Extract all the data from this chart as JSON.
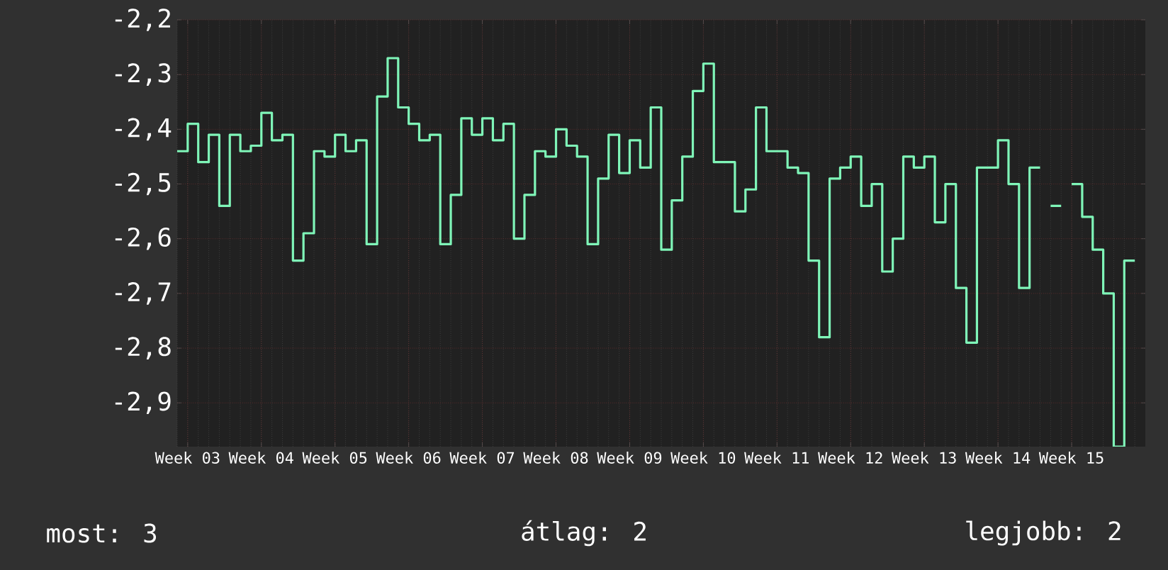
{
  "chart_data": {
    "type": "step",
    "color": "#7ff5b8",
    "grid": true,
    "line_style": "solid",
    "marker": "none",
    "categories": [
      null,
      "Week 03",
      null,
      null,
      null,
      null,
      null,
      null,
      "Week 04",
      null,
      null,
      null,
      null,
      null,
      null,
      "Week 05",
      null,
      null,
      null,
      null,
      null,
      null,
      "Week 06",
      null,
      null,
      null,
      null,
      null,
      null,
      "Week 07",
      null,
      null,
      null,
      null,
      null,
      null,
      "Week 08",
      null,
      null,
      null,
      null,
      null,
      null,
      "Week 09",
      null,
      null,
      null,
      null,
      null,
      null,
      "Week 10",
      null,
      null,
      null,
      null,
      null,
      null,
      "Week 11",
      null,
      null,
      null,
      null,
      null,
      null,
      "Week 12",
      null,
      null,
      null,
      null,
      null,
      null,
      "Week 13",
      null,
      null,
      null,
      null,
      null,
      null,
      "Week 14",
      null,
      null,
      null,
      null,
      null,
      null,
      "Week 15",
      null,
      null,
      null,
      null,
      null,
      null
    ],
    "values": [
      -2.44,
      -2.39,
      -2.46,
      -2.41,
      -2.54,
      -2.41,
      -2.44,
      -2.43,
      -2.37,
      -2.42,
      -2.41,
      -2.64,
      -2.59,
      -2.44,
      -2.45,
      -2.41,
      -2.44,
      -2.42,
      -2.61,
      -2.34,
      -2.27,
      -2.36,
      -2.39,
      -2.42,
      -2.41,
      -2.61,
      -2.52,
      -2.38,
      -2.41,
      -2.38,
      -2.42,
      -2.39,
      -2.6,
      -2.52,
      -2.44,
      -2.45,
      -2.4,
      -2.43,
      -2.45,
      -2.61,
      -2.49,
      -2.41,
      -2.48,
      -2.42,
      -2.47,
      -2.36,
      -2.62,
      -2.53,
      -2.45,
      -2.33,
      -2.28,
      -2.46,
      -2.46,
      -2.55,
      -2.51,
      -2.36,
      -2.44,
      -2.44,
      -2.47,
      -2.48,
      -2.64,
      -2.78,
      -2.49,
      -2.47,
      -2.45,
      -2.54,
      -2.5,
      -2.66,
      -2.6,
      -2.45,
      -2.47,
      -2.45,
      -2.57,
      -2.5,
      -2.69,
      -2.79,
      -2.47,
      -2.47,
      -2.42,
      -2.5,
      -2.69,
      -2.47,
      null,
      -2.54,
      null,
      -2.5,
      -2.56,
      -2.62,
      -2.7,
      -2.98,
      -2.64,
      -2.64
    ],
    "ylim": [
      -2.98,
      -2.2
    ],
    "yticks": [
      {
        "value": -2.2,
        "label": "-2,2"
      },
      {
        "value": -2.3,
        "label": "-2,3"
      },
      {
        "value": -2.4,
        "label": "-2,4"
      },
      {
        "value": -2.5,
        "label": "-2,5"
      },
      {
        "value": -2.6,
        "label": "-2,6"
      },
      {
        "value": -2.7,
        "label": "-2,7"
      },
      {
        "value": -2.8,
        "label": "-2,8"
      },
      {
        "value": -2.9,
        "label": "-2,9"
      }
    ],
    "annotations": [
      "most: 3",
      "átlag: 2",
      "legjobb: 2"
    ]
  }
}
